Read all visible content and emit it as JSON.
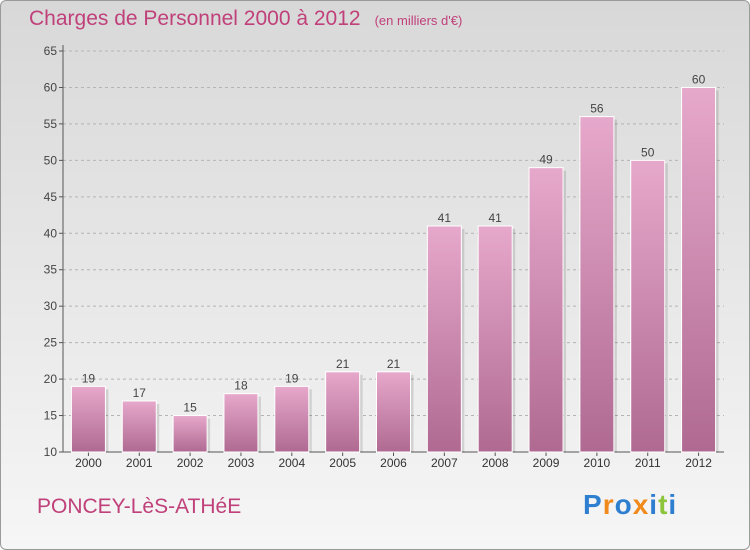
{
  "header": {
    "title": "Charges de Personnel 2000 à 2012",
    "subtitle": "(en milliers d'€)"
  },
  "footer": {
    "town": "PONCEY-LèS-ATHéE",
    "logo": "Proxiti"
  },
  "colors": {
    "title": "#c0407a",
    "bar_top": "#e6a8cb",
    "bar_bottom": "#b06a92",
    "logo_letters": [
      "#2f7fd0",
      "#f08a1c",
      "#2f7fd0",
      "#f08a1c",
      "#2f7fd0",
      "#8cc43c",
      "#2f7fd0"
    ]
  },
  "chart_data": {
    "type": "bar",
    "categories": [
      "2000",
      "2001",
      "2002",
      "2003",
      "2004",
      "2005",
      "2006",
      "2007",
      "2008",
      "2009",
      "2010",
      "2011",
      "2012"
    ],
    "values": [
      19,
      17,
      15,
      18,
      19,
      21,
      21,
      41,
      41,
      49,
      56,
      50,
      60
    ],
    "ylim": [
      10,
      65
    ],
    "yticks": [
      10,
      15,
      20,
      25,
      30,
      35,
      40,
      45,
      50,
      55,
      60,
      65
    ],
    "grid": "horizontal dashed",
    "data_labels": true
  }
}
